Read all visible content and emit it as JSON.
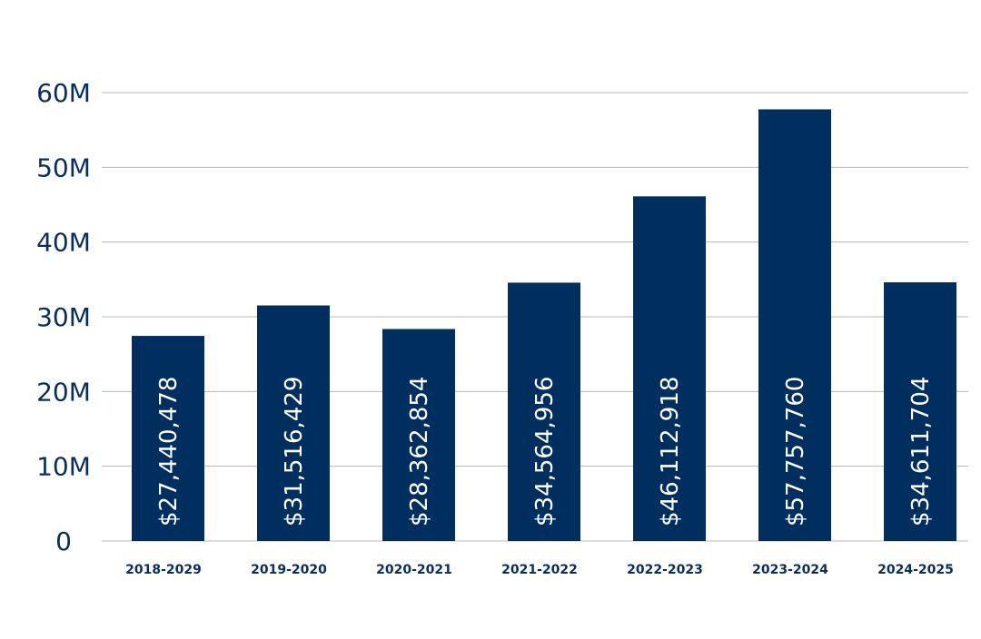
{
  "colors": {
    "bar": "#002f5f",
    "axis_text": "#0a2d5a",
    "grid": "#b8b8b8",
    "bar_label": "#ffffff"
  },
  "chart_data": {
    "type": "bar",
    "title": "",
    "xlabel": "",
    "ylabel": "",
    "categories": [
      "2018-2029",
      "2019-2020",
      "2020-2021",
      "2021-2022",
      "2022-2023",
      "2023-2024",
      "2024-2025"
    ],
    "values": [
      27440478,
      31516429,
      28362854,
      34564956,
      46112918,
      57757760,
      34611704
    ],
    "data_labels": [
      "$27,440,478",
      "$31,516,429",
      "$28,362,854",
      "$34,564,956",
      "$46,112,918",
      "$57,757,760",
      "$34,611,704"
    ],
    "y_ticks": [
      0,
      10000000,
      20000000,
      30000000,
      40000000,
      50000000,
      60000000
    ],
    "y_tick_labels": [
      "0",
      "10M",
      "20M",
      "30M",
      "40M",
      "50M",
      "60M"
    ],
    "ylim": [
      0,
      60000000
    ],
    "grid": true,
    "legend": "none"
  }
}
